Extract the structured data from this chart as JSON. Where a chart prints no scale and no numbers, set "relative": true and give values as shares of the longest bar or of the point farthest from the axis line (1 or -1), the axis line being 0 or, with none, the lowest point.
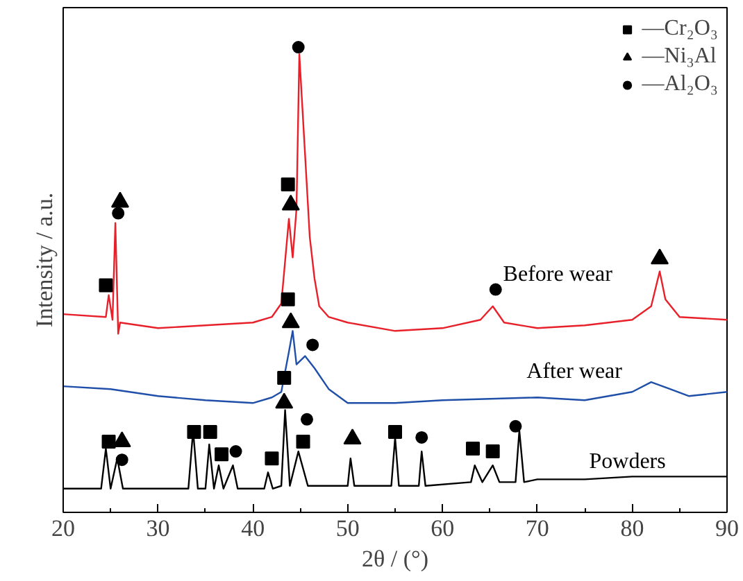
{
  "chart_data": {
    "type": "line",
    "relative": true,
    "xlabel": "2θ / (°)",
    "ylabel": "Intensity / a.u.",
    "xlim": [
      20,
      90
    ],
    "xticks": [
      20,
      30,
      40,
      50,
      60,
      70,
      80,
      90
    ],
    "grid": false,
    "legend": "top right",
    "series": [
      {
        "color": "#e8202a",
        "x": [
          20,
          24.5,
          24.8,
          25.2,
          25.5,
          25.8,
          26,
          30,
          35,
          40,
          42,
          43,
          43.8,
          44.2,
          44.6,
          44.9,
          45.5,
          46,
          46.5,
          47,
          48,
          50,
          55,
          60,
          64,
          65.3,
          66.5,
          70,
          75,
          80,
          82,
          82.9,
          83.5,
          85,
          90
        ],
        "values": [
          0.426,
          0.42,
          0.467,
          0.414,
          0.622,
          0.384,
          0.408,
          0.396,
          0.402,
          0.408,
          0.42,
          0.449,
          0.631,
          0.548,
          0.652,
          0.985,
          0.771,
          0.592,
          0.503,
          0.443,
          0.42,
          0.408,
          0.39,
          0.396,
          0.414,
          0.443,
          0.408,
          0.396,
          0.402,
          0.414,
          0.443,
          0.518,
          0.458,
          0.42,
          0.414
        ]
      },
      {
        "color": "#1f4fa8",
        "x": [
          20,
          25,
          30,
          35,
          40,
          42,
          43,
          43.8,
          44.2,
          44.6,
          45.5,
          46.5,
          48,
          50,
          55,
          60,
          65,
          70,
          75,
          80,
          82,
          84,
          86,
          90
        ],
        "values": [
          0.271,
          0.265,
          0.25,
          0.241,
          0.235,
          0.247,
          0.259,
          0.345,
          0.39,
          0.318,
          0.336,
          0.31,
          0.265,
          0.235,
          0.235,
          0.241,
          0.244,
          0.247,
          0.241,
          0.259,
          0.28,
          0.265,
          0.25,
          0.259
        ]
      },
      {
        "color": "#000000",
        "x": [
          20,
          24,
          24.5,
          25,
          25.7,
          26.3,
          30,
          33.2,
          33.7,
          34.2,
          35,
          35.4,
          35.9,
          36.4,
          36.9,
          37.9,
          38.4,
          41.2,
          41.6,
          42.1,
          43,
          43.4,
          43.9,
          44.8,
          45.8,
          48,
          50,
          50.3,
          50.7,
          54.6,
          55,
          55.4,
          57.5,
          57.8,
          58.2,
          63,
          63.4,
          64.2,
          65.3,
          66,
          67.7,
          68.1,
          68.6,
          70,
          75,
          80,
          85,
          90
        ],
        "values": [
          0.051,
          0.051,
          0.137,
          0.051,
          0.116,
          0.051,
          0.051,
          0.051,
          0.176,
          0.051,
          0.051,
          0.146,
          0.051,
          0.101,
          0.051,
          0.101,
          0.051,
          0.051,
          0.086,
          0.051,
          0.057,
          0.22,
          0.057,
          0.131,
          0.057,
          0.057,
          0.057,
          0.116,
          0.057,
          0.057,
          0.161,
          0.057,
          0.057,
          0.131,
          0.057,
          0.065,
          0.101,
          0.065,
          0.101,
          0.065,
          0.065,
          0.176,
          0.065,
          0.071,
          0.071,
          0.077,
          0.077,
          0.077
        ]
      },
      {
        "type": "scatter",
        "name": "—Cr₂O₃",
        "marker": "square",
        "color": "#000000",
        "x": [
          24.5,
          43.7,
          43.7,
          43.3,
          24.8,
          33.8,
          35.5,
          36.7,
          42,
          45.3,
          55,
          63.2,
          65.3
        ],
        "values": [
          0.488,
          0.705,
          0.458,
          0.289,
          0.152,
          0.173,
          0.173,
          0.125,
          0.116,
          0.152,
          0.173,
          0.137,
          0.131
        ]
      },
      {
        "type": "scatter",
        "name": "—Ni₃Al",
        "marker": "triangle",
        "color": "#000000",
        "x": [
          26,
          44,
          44,
          43.3,
          26.2,
          50.5,
          82.9
        ],
        "values": [
          0.667,
          0.661,
          0.408,
          0.235,
          0.152,
          0.158,
          0.545
        ]
      },
      {
        "type": "scatter",
        "name": "—Al₂O₃",
        "marker": "circle",
        "color": "#000000",
        "x": [
          44.8,
          25.8,
          46.3,
          26.2,
          45.7,
          38.2,
          57.8,
          65.6,
          67.7
        ],
        "values": [
          1.0,
          0.643,
          0.36,
          0.113,
          0.2,
          0.131,
          0.161,
          0.479,
          0.185
        ]
      }
    ],
    "annotations": [
      "Before wear",
      "After wear",
      "Powders"
    ]
  }
}
